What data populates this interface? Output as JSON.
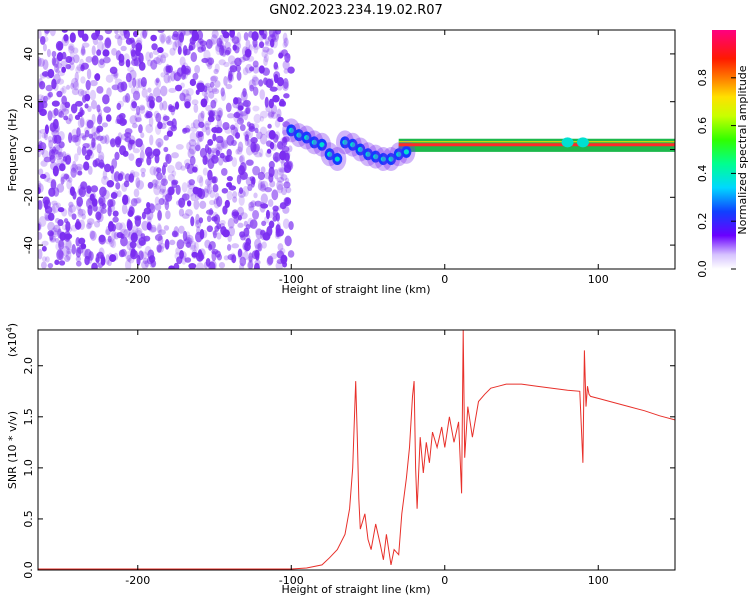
{
  "title": "GN02.2023.234.19.02.R07",
  "colors": {
    "trace": "#e8302a",
    "axis": "#000000",
    "noise": "#7a2cf0"
  },
  "chart_data": [
    {
      "type": "heatmap",
      "xlabel": "Height of straight line (km)",
      "ylabel": "Frequency (Hz)",
      "xlim": [
        -265,
        150
      ],
      "ylim": [
        -50,
        50
      ],
      "xticks": [
        "-200",
        "-100",
        "0",
        "100"
      ],
      "xtick_values": [
        -200,
        -100,
        0,
        100
      ],
      "yticks": [
        "-40",
        "-20",
        "0",
        "20",
        "40"
      ],
      "ytick_values": [
        -40,
        -20,
        0,
        20,
        40
      ],
      "colorbar": {
        "label": "Normalized spectral amplitude",
        "range": [
          0,
          1
        ],
        "ticks": [
          "0.0",
          "0.2",
          "0.4",
          "0.6",
          "0.8"
        ],
        "tick_values": [
          0.0,
          0.2,
          0.4,
          0.6,
          0.8
        ]
      },
      "noise_region": {
        "x_from": -265,
        "x_to": -100
      },
      "signal_track": {
        "x": [
          -100,
          -95,
          -90,
          -85,
          -80,
          -75,
          -70,
          -65,
          -60,
          -55,
          -50,
          -45,
          -40,
          -35,
          -30,
          -25,
          -20,
          -15,
          -10,
          -5,
          0,
          10,
          20,
          40,
          60,
          80,
          90,
          100,
          120,
          150
        ],
        "y": [
          8,
          6,
          5,
          3,
          2,
          -2,
          -4,
          3,
          2,
          0,
          -2,
          -3,
          -4,
          -4,
          -2,
          -1,
          0,
          1,
          2,
          2,
          2,
          2,
          2,
          2,
          2,
          3,
          3,
          2,
          2,
          2
        ]
      }
    },
    {
      "type": "line",
      "xlabel": "Height of straight line (km)",
      "ylabel": "SNR (10 * v/v)",
      "y_multiplier": "(x10",
      "y_multiplier_exp": "4",
      "y_multiplier_close": ")",
      "xlim": [
        -265,
        150
      ],
      "ylim": [
        0,
        2.35
      ],
      "xticks": [
        "-200",
        "-100",
        "0",
        "100"
      ],
      "xtick_values": [
        -200,
        -100,
        0,
        100
      ],
      "yticks": [
        "0.0",
        "0.5",
        "1.0",
        "1.5",
        "2.0"
      ],
      "ytick_values": [
        0.0,
        0.5,
        1.0,
        1.5,
        2.0
      ],
      "series": [
        {
          "x": [
            -265,
            -240,
            -200,
            -160,
            -120,
            -100,
            -90,
            -80,
            -75,
            -70,
            -65,
            -62,
            -60,
            -58,
            -57,
            -56,
            -55,
            -52,
            -50,
            -48,
            -45,
            -42,
            -40,
            -38,
            -35,
            -33,
            -30,
            -28,
            -25,
            -23,
            -21,
            -20,
            -19,
            -18,
            -16,
            -14,
            -12,
            -10,
            -8,
            -5,
            -2,
            0,
            3,
            6,
            9,
            11,
            12,
            13,
            15,
            18,
            22,
            26,
            30,
            35,
            40,
            50,
            60,
            70,
            80,
            88,
            90,
            91,
            92,
            93,
            94,
            95,
            100,
            110,
            120,
            130,
            140,
            150
          ],
          "y": [
            0.01,
            0.01,
            0.01,
            0.01,
            0.01,
            0.01,
            0.02,
            0.05,
            0.12,
            0.2,
            0.35,
            0.6,
            1.0,
            1.85,
            1.3,
            0.7,
            0.4,
            0.55,
            0.3,
            0.2,
            0.45,
            0.25,
            0.1,
            0.35,
            0.05,
            0.2,
            0.15,
            0.55,
            0.9,
            1.2,
            1.7,
            1.85,
            1.0,
            0.6,
            1.3,
            0.95,
            1.25,
            1.05,
            1.35,
            1.2,
            1.4,
            1.2,
            1.5,
            1.25,
            1.45,
            0.75,
            2.35,
            1.1,
            1.6,
            1.3,
            1.65,
            1.72,
            1.78,
            1.8,
            1.82,
            1.82,
            1.8,
            1.78,
            1.76,
            1.75,
            1.05,
            2.15,
            1.6,
            1.8,
            1.72,
            1.7,
            1.68,
            1.64,
            1.6,
            1.56,
            1.51,
            1.47
          ]
        }
      ]
    }
  ]
}
